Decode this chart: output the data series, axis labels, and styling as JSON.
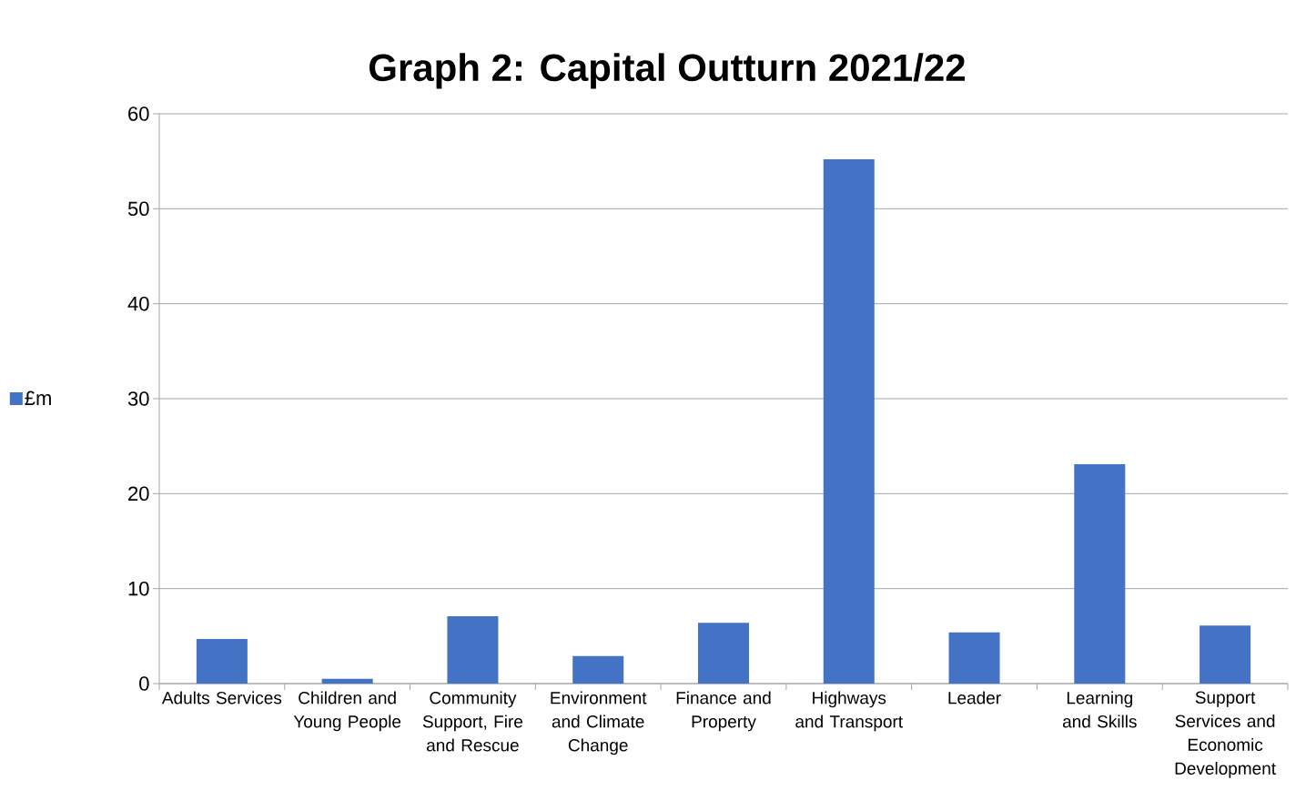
{
  "chart_data": {
    "type": "bar",
    "title": "Graph 2: Capital Outturn 2021/22",
    "categories": [
      "Adults Services",
      "Children and Young People",
      "Community Support, Fire and Rescue",
      "Environment and Climate Change",
      "Finance and Property",
      "Highways and Transport",
      "Leader",
      "Learning and Skills",
      "Support Services and Economic Development"
    ],
    "series": [
      {
        "name": "£m",
        "color": "#4472c4",
        "values": [
          4.7,
          0.5,
          7.1,
          2.9,
          6.4,
          55.2,
          5.4,
          23.1,
          6.1
        ]
      }
    ],
    "ylim": [
      0,
      60
    ],
    "yticks": [
      0,
      10,
      20,
      30,
      40,
      50,
      60
    ],
    "grid": "y",
    "legend": "left"
  }
}
